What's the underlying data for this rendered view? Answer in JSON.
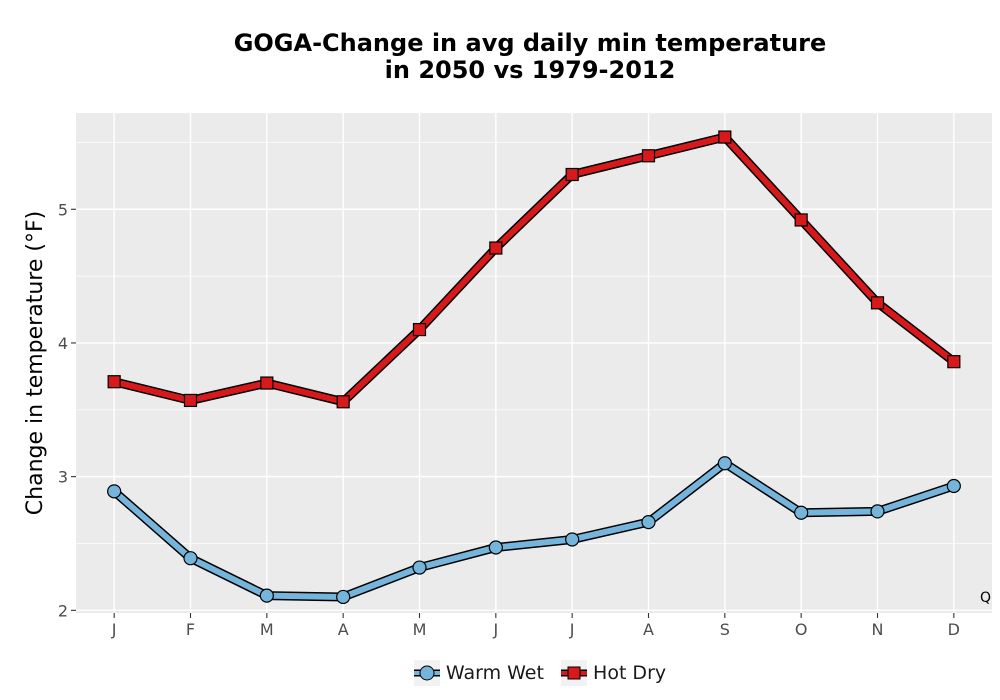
{
  "chart_data": {
    "type": "line",
    "title_lines": [
      "GOGA-Change in avg daily min temperature",
      "in 2050 vs 1979-2012"
    ],
    "xlabel": "",
    "ylabel": "Change in temperature (°F)",
    "categories": [
      "J",
      "F",
      "M",
      "A",
      "M",
      "J",
      "J",
      "A",
      "S",
      "O",
      "N",
      "D"
    ],
    "ylim": [
      1.98,
      5.72
    ],
    "yticks": [
      2,
      3,
      4,
      5
    ],
    "grid": true,
    "legend_position": "bottom",
    "series": [
      {
        "name": "Warm Wet",
        "color": "#75b5dc",
        "marker": "circle",
        "values": [
          2.89,
          2.39,
          2.11,
          2.1,
          2.32,
          2.47,
          2.53,
          2.66,
          3.1,
          2.73,
          2.74,
          2.93
        ]
      },
      {
        "name": "Hot Dry",
        "color": "#d7191c",
        "marker": "square",
        "values": [
          3.71,
          3.57,
          3.7,
          3.56,
          4.1,
          4.71,
          5.26,
          5.4,
          5.54,
          4.92,
          4.3,
          3.86
        ]
      }
    ]
  },
  "corner_text": "Q"
}
